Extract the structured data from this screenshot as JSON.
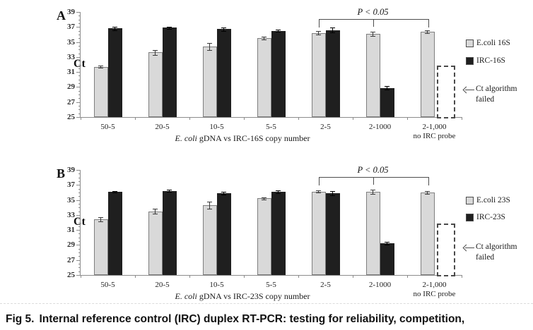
{
  "figure": {
    "caption_prefix": "Fig 5.",
    "caption_text": "Internal reference control (IRC) duplex RT-PCR: testing for reliability, competition,"
  },
  "panels": [
    {
      "letter": "A",
      "y_axis_label": "Ct",
      "x_axis_title_em": "E. coli",
      "x_axis_title_rest": " gDNA vs IRC-16S copy number",
      "significance_label": "P < 0.05",
      "annotation_line1": "Ct algorithm",
      "annotation_line2": "failed",
      "legend": [
        {
          "label": "E.coli 16S",
          "color": "#d9d9d9"
        },
        {
          "label": "IRC-16S",
          "color": "#1f1f1f"
        }
      ],
      "chart_data": {
        "type": "bar",
        "ylabel": "Ct",
        "ylim": [
          25,
          39
        ],
        "ytick_major": 2,
        "ytick_minor": 0.5,
        "grid": false,
        "legend_position": "right",
        "categories": [
          "50-5",
          "20-5",
          "10-5",
          "5-5",
          "2-5",
          "2-1000",
          "2-1,000"
        ],
        "category_sublabels": [
          "",
          "",
          "",
          "",
          "",
          "",
          "no IRC probe"
        ],
        "series": [
          {
            "name": "E.coli 16S",
            "color": "#d9d9d9",
            "border": "#7f7f7f",
            "values": [
              31.7,
              33.6,
              34.4,
              35.5,
              36.2,
              36.1,
              36.4
            ],
            "errors": [
              0.15,
              0.3,
              0.45,
              0.2,
              0.25,
              0.25,
              0.2
            ]
          },
          {
            "name": "IRC-16S",
            "color": "#1f1f1f",
            "border": "#1f1f1f",
            "values": [
              36.8,
              36.9,
              36.7,
              36.5,
              36.6,
              28.9,
              null
            ],
            "errors": [
              0.25,
              0.15,
              0.2,
              0.15,
              0.3,
              0.2,
              null
            ]
          }
        ],
        "significance": {
          "label": "P < 0.05",
          "from_index": 4,
          "mid_index": 5,
          "to_index": 6
        },
        "missing_bar": {
          "series_index": 1,
          "category_index": 6,
          "note": "Ct algorithm failed",
          "box_top_value": 31.9
        }
      }
    },
    {
      "letter": "B",
      "y_axis_label": "Ct",
      "x_axis_title_em": "E. coli",
      "x_axis_title_rest": " gDNA vs IRC-23S copy number",
      "significance_label": "P < 0.05",
      "annotation_line1": "Ct algorithm",
      "annotation_line2": "failed",
      "legend": [
        {
          "label": "E.coli 23S",
          "color": "#d9d9d9"
        },
        {
          "label": "IRC-23S",
          "color": "#1f1f1f"
        }
      ],
      "chart_data": {
        "type": "bar",
        "ylabel": "Ct",
        "ylim": [
          25,
          39
        ],
        "ytick_major": 2,
        "ytick_minor": 0.5,
        "grid": false,
        "legend_position": "right",
        "categories": [
          "50-5",
          "20-5",
          "10-5",
          "5-5",
          "2-5",
          "2-1000",
          "2-1,000"
        ],
        "category_sublabels": [
          "",
          "",
          "",
          "",
          "",
          "",
          "no IRC probe"
        ],
        "series": [
          {
            "name": "E.coli 23S",
            "color": "#d9d9d9",
            "border": "#7f7f7f",
            "values": [
              32.4,
              33.5,
              34.3,
              35.2,
              36.1,
              36.1,
              36.0
            ],
            "errors": [
              0.3,
              0.35,
              0.45,
              0.12,
              0.15,
              0.3,
              0.2
            ]
          },
          {
            "name": "IRC-23S",
            "color": "#1f1f1f",
            "border": "#1f1f1f",
            "values": [
              36.1,
              36.2,
              35.9,
              36.1,
              35.9,
              29.2,
              null
            ],
            "errors": [
              0.12,
              0.15,
              0.2,
              0.18,
              0.25,
              0.2,
              null
            ]
          }
        ],
        "significance": {
          "label": "P < 0.05",
          "from_index": 4,
          "mid_index": 5,
          "to_index": 6
        },
        "missing_bar": {
          "series_index": 1,
          "category_index": 6,
          "note": "Ct algorithm failed",
          "box_top_value": 31.9
        }
      }
    }
  ]
}
